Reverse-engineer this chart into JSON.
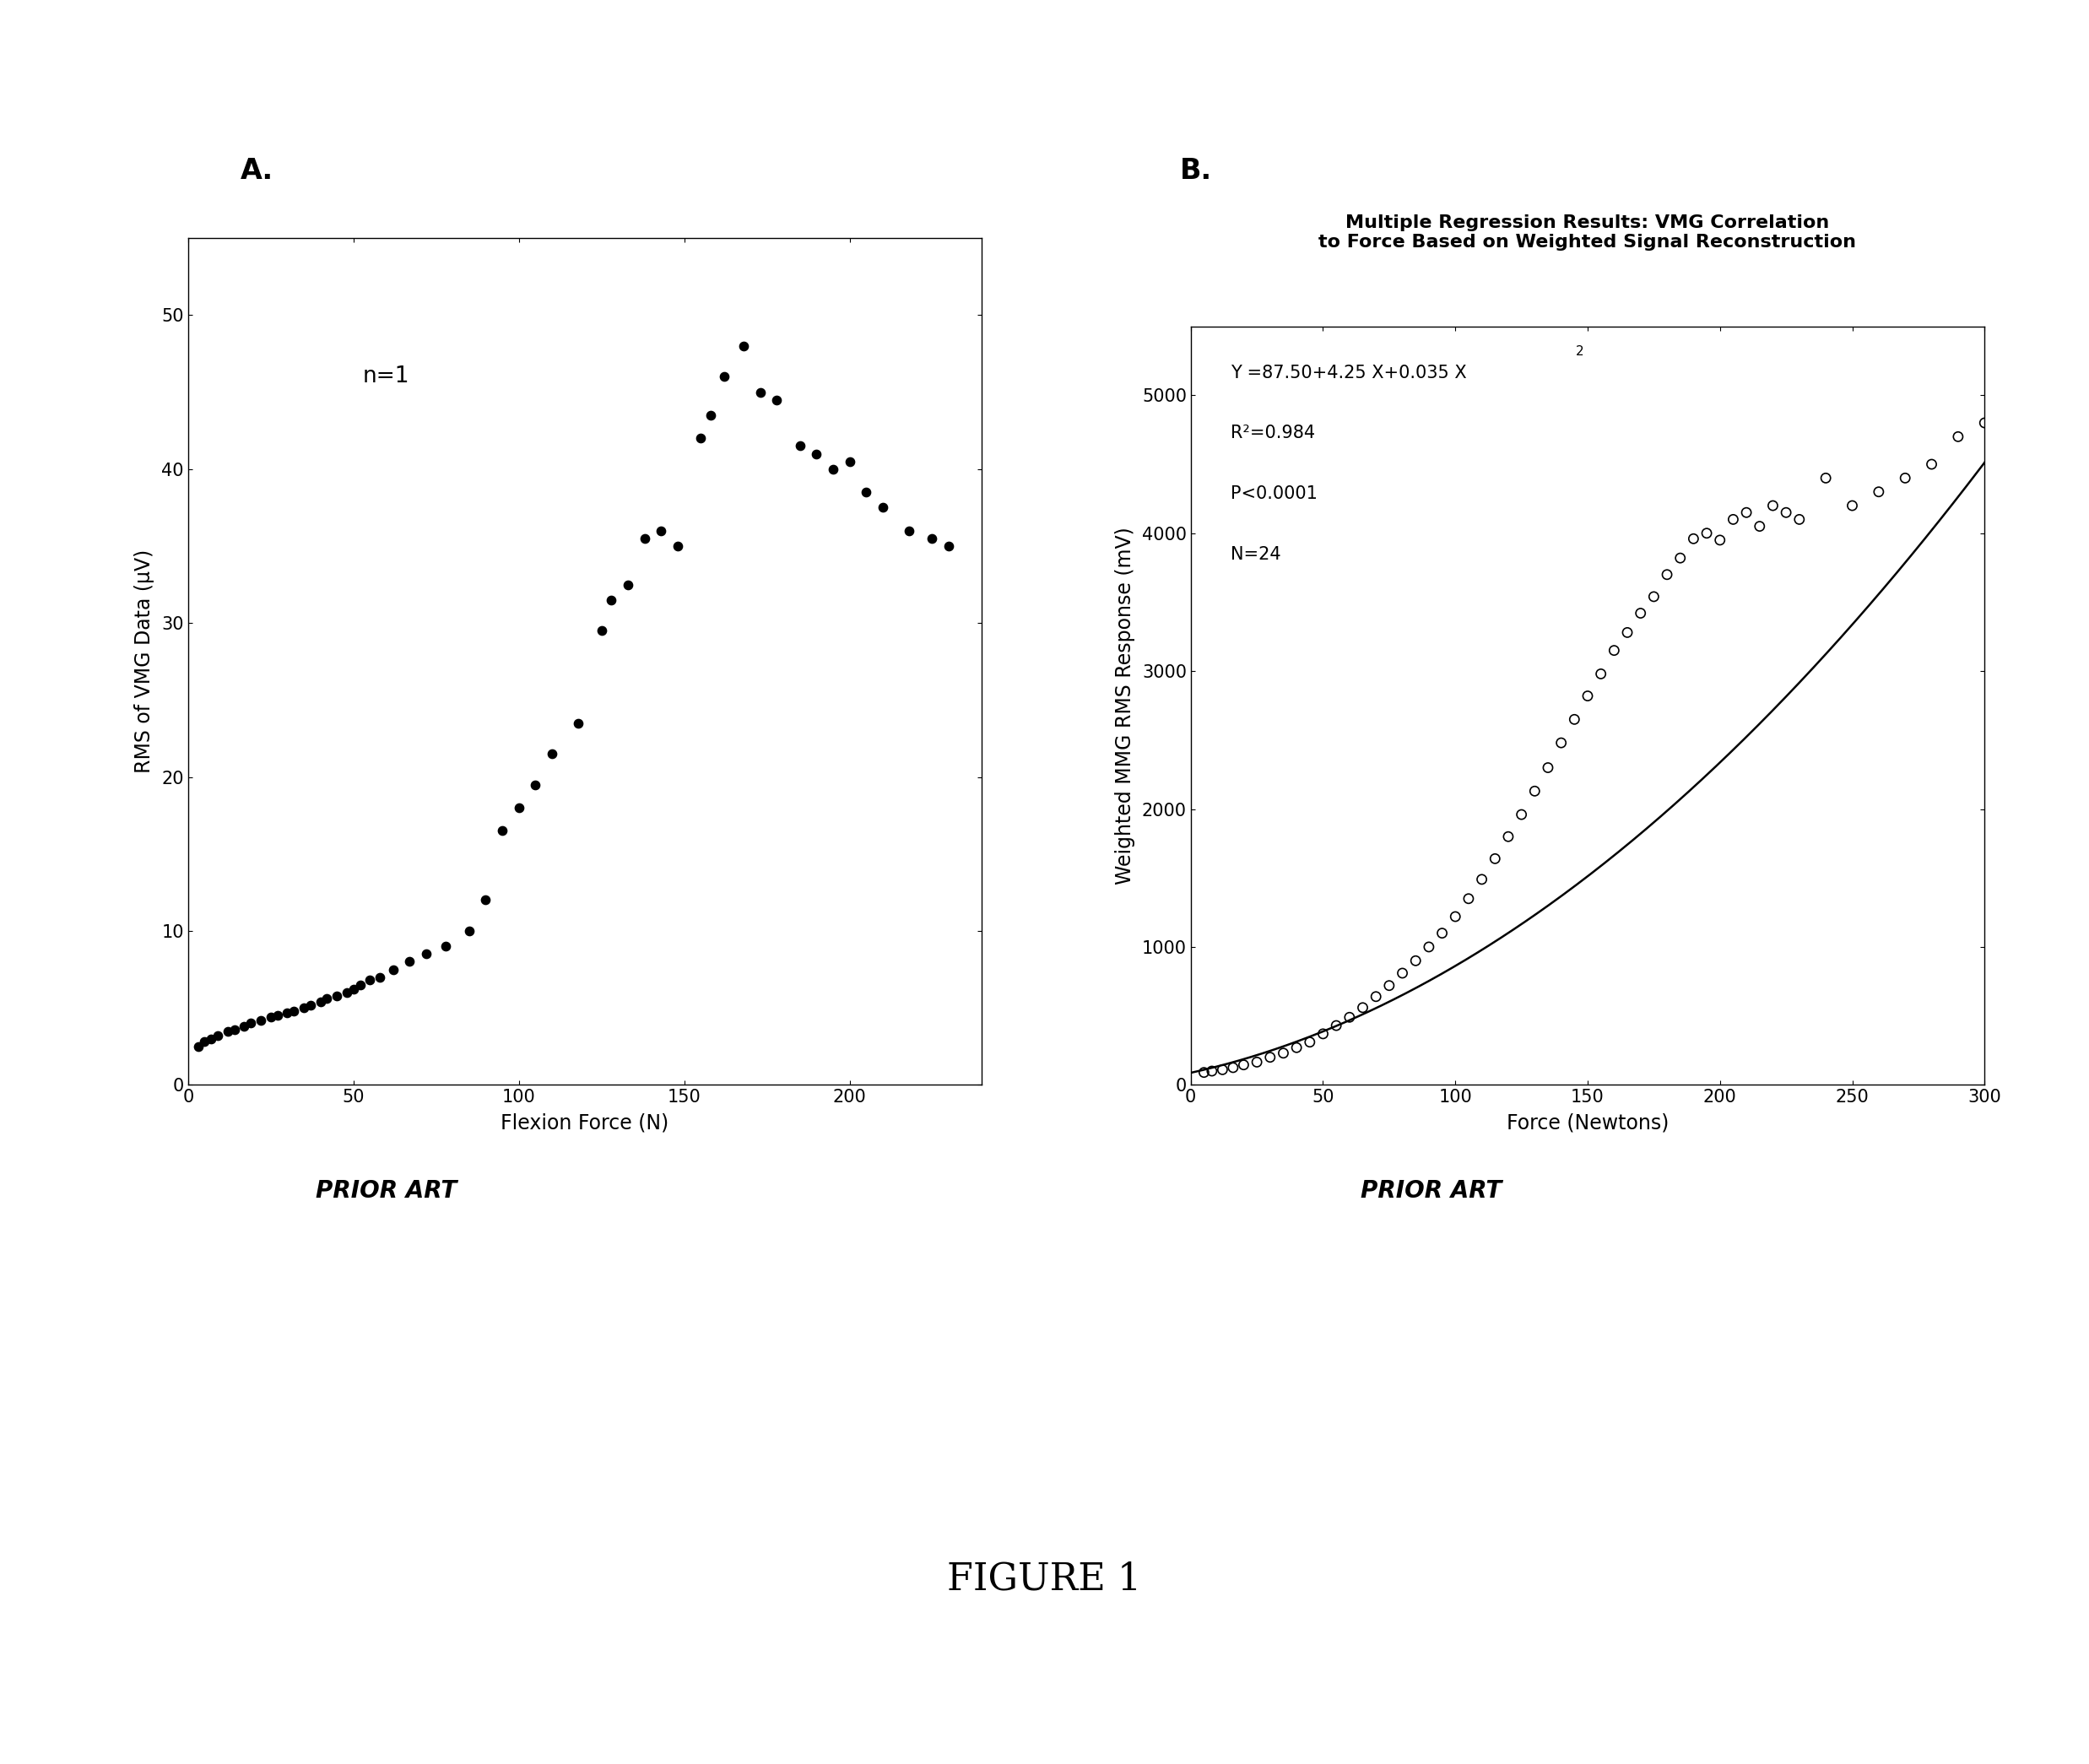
{
  "panel_A_label": "A.",
  "panel_B_label": "B.",
  "prior_art": "PRIOR ART",
  "figure_label": "FIGURE 1",
  "plot_A": {
    "xlabel": "Flexion Force (N)",
    "ylabel": "RMS of VMG Data (μV)",
    "annotation": "n=1",
    "xlim": [
      0,
      240
    ],
    "ylim": [
      0,
      55
    ],
    "xticks": [
      0,
      50,
      100,
      150,
      200
    ],
    "yticks": [
      0,
      10,
      20,
      30,
      40,
      50
    ],
    "data_x": [
      3,
      5,
      7,
      9,
      12,
      14,
      17,
      19,
      22,
      25,
      27,
      30,
      32,
      35,
      37,
      40,
      42,
      45,
      48,
      50,
      52,
      55,
      58,
      62,
      67,
      72,
      78,
      85,
      90,
      95,
      100,
      105,
      110,
      118,
      125,
      128,
      133,
      138,
      143,
      148,
      155,
      158,
      162,
      168,
      173,
      178,
      185,
      190,
      195,
      200,
      205,
      210,
      218,
      225,
      230
    ],
    "data_y": [
      2.5,
      2.8,
      3.0,
      3.2,
      3.5,
      3.6,
      3.8,
      4.0,
      4.2,
      4.4,
      4.5,
      4.7,
      4.8,
      5.0,
      5.2,
      5.4,
      5.6,
      5.8,
      6.0,
      6.2,
      6.5,
      6.8,
      7.0,
      7.5,
      8.0,
      8.5,
      9.0,
      10.0,
      12.0,
      16.5,
      18.0,
      19.5,
      21.5,
      23.5,
      29.5,
      31.5,
      32.5,
      35.5,
      36.0,
      35.0,
      42.0,
      43.5,
      46.0,
      48.0,
      45.0,
      44.5,
      41.5,
      41.0,
      40.0,
      40.5,
      38.5,
      37.5,
      36.0,
      35.5,
      35.0
    ]
  },
  "plot_B": {
    "title_line1": "Multiple Regression Results: VMG Correlation",
    "title_line2": "to Force Based on Weighted Signal Reconstruction",
    "xlabel": "Force (Newtons)",
    "ylabel": "Weighted MMG RMS Response (mV)",
    "eq_line1": "Y =87.50+4.25 X+0.035 X",
    "eq_superscript": "2",
    "annotation_line2": "R²=0.984",
    "annotation_line3": "P<0.0001",
    "annotation_line4": "N=24",
    "xlim": [
      0,
      300
    ],
    "ylim": [
      0,
      5500
    ],
    "xticks": [
      0,
      50,
      100,
      150,
      200,
      250,
      300
    ],
    "yticks": [
      0,
      1000,
      2000,
      3000,
      4000,
      5000
    ],
    "data_x": [
      5,
      8,
      12,
      16,
      20,
      25,
      30,
      35,
      40,
      45,
      50,
      55,
      60,
      65,
      70,
      75,
      80,
      85,
      90,
      95,
      100,
      105,
      110,
      115,
      120,
      125,
      130,
      135,
      140,
      145,
      150,
      155,
      160,
      165,
      170,
      175,
      180,
      185,
      190,
      195,
      200,
      205,
      210,
      215,
      220,
      225,
      230,
      240,
      250,
      260,
      270,
      280,
      290,
      300
    ],
    "data_y": [
      90,
      100,
      110,
      125,
      145,
      165,
      200,
      230,
      270,
      310,
      370,
      430,
      490,
      560,
      640,
      720,
      810,
      900,
      1000,
      1100,
      1220,
      1350,
      1490,
      1640,
      1800,
      1960,
      2130,
      2300,
      2480,
      2650,
      2820,
      2980,
      3150,
      3280,
      3420,
      3540,
      3700,
      3820,
      3960,
      4000,
      3950,
      4100,
      4150,
      4050,
      4200,
      4150,
      4100,
      4400,
      4200,
      4300,
      4400,
      4500,
      4700,
      4800
    ]
  }
}
